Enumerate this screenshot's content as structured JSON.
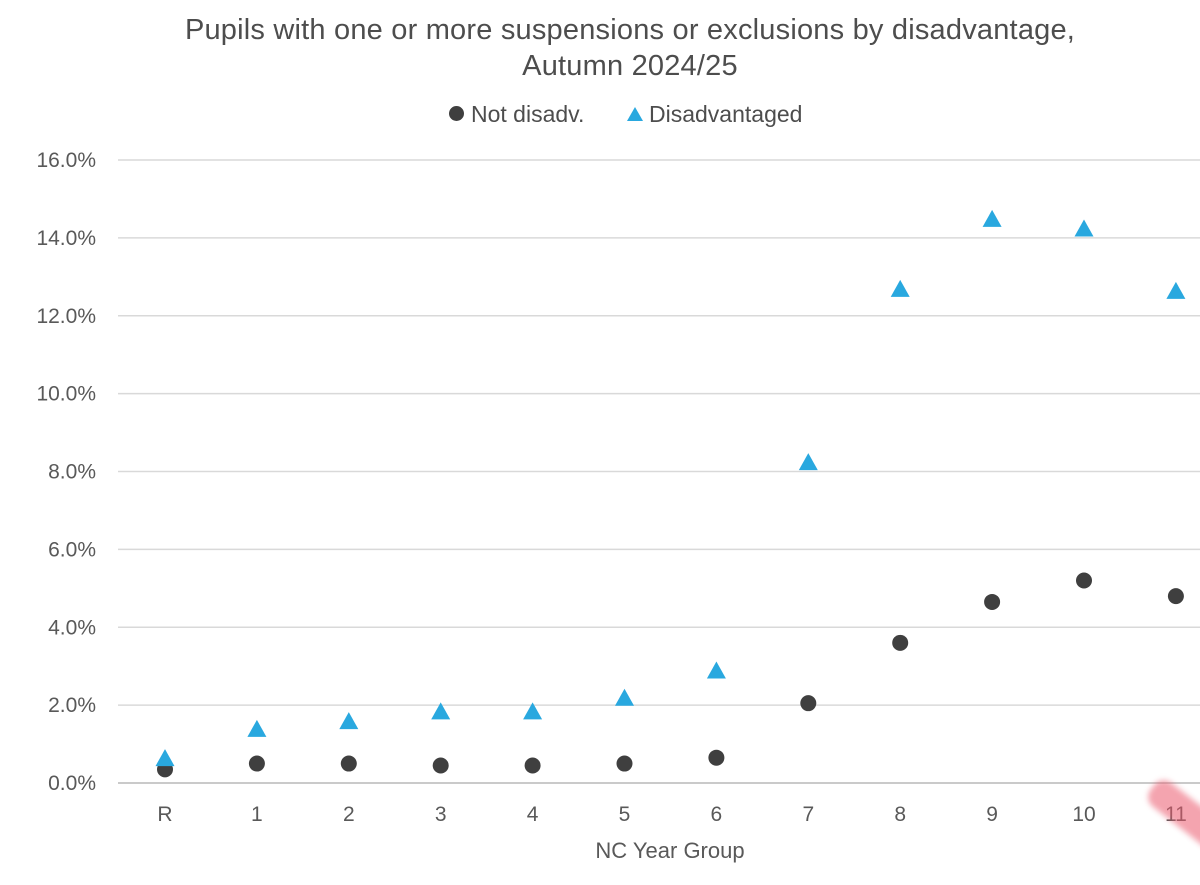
{
  "chart_data": {
    "type": "scatter",
    "title": "Pupils with one or more suspensions or exclusions by disadvantage,",
    "subtitle": "Autumn 2024/25",
    "xlabel": "NC Year Group",
    "ylabel": "",
    "categories": [
      "R",
      "1",
      "2",
      "3",
      "4",
      "5",
      "6",
      "7",
      "8",
      "9",
      "10",
      "11"
    ],
    "ylim": [
      0,
      16
    ],
    "yticks": [
      0,
      2,
      4,
      6,
      8,
      10,
      12,
      14,
      16
    ],
    "ytick_labels": [
      "0.0%",
      "2.0%",
      "4.0%",
      "6.0%",
      "8.0%",
      "10.0%",
      "12.0%",
      "14.0%",
      "16.0%"
    ],
    "legend_position": "top-center",
    "grid": true,
    "series": [
      {
        "name": "Not disadv.",
        "marker": "circle",
        "color": "#3f3f3f",
        "values": [
          0.35,
          0.5,
          0.5,
          0.45,
          0.45,
          0.5,
          0.65,
          2.05,
          3.6,
          4.65,
          5.2,
          4.8
        ]
      },
      {
        "name": "Disadvantaged",
        "marker": "triangle",
        "color": "#29a8df",
        "values": [
          0.6,
          1.35,
          1.55,
          1.8,
          1.8,
          2.15,
          2.85,
          8.2,
          12.65,
          14.45,
          14.2,
          12.6
        ]
      }
    ],
    "gridline_color": "#d9d9d9",
    "text_color": "#595959"
  }
}
